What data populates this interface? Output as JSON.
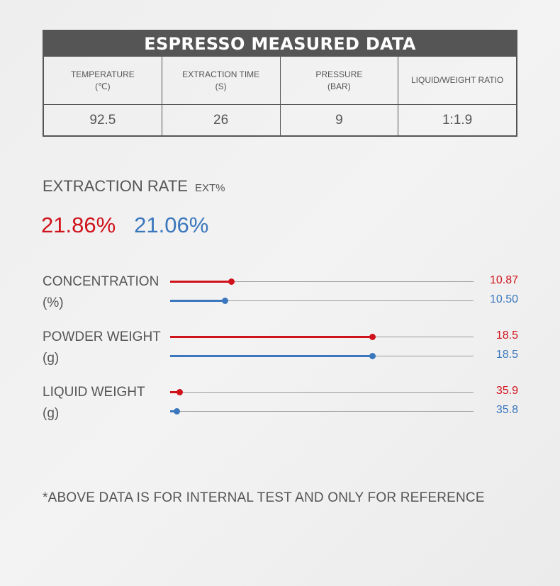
{
  "table": {
    "title": "ESPRESSO MEASURED DATA",
    "headers": [
      "TEMPERATURE\n(℃)",
      "EXTRACTION TIME\n(S)",
      "PRESSURE\n(BAR)",
      "LIQUID/WEIGHT RATIO"
    ],
    "values": [
      "92.5",
      "26",
      "9",
      "1:1.9"
    ]
  },
  "extraction": {
    "title": "EXTRACTION RATE",
    "unit": "EXT%",
    "value_red": "21.86%",
    "value_blue": "21.06%"
  },
  "colors": {
    "red": "#d0121b",
    "blue": "#3a77bd",
    "header_bg": "#555555"
  },
  "chart_data": {
    "type": "bar",
    "orientation": "horizontal",
    "groups": [
      {
        "label": "CONCENTRATION",
        "unit": "(%)",
        "red": {
          "label": "10.87",
          "fraction": 0.2
        },
        "blue": {
          "label": "10.50",
          "fraction": 0.18
        }
      },
      {
        "label": "POWDER WEIGHT",
        "unit": "(g)",
        "red": {
          "label": "18.5",
          "fraction": 0.667
        },
        "blue": {
          "label": "18.5",
          "fraction": 0.667
        }
      },
      {
        "label": "LIQUID WEIGHT",
        "unit": "(g)",
        "red": {
          "label": "35.9",
          "fraction": 0.03
        },
        "blue": {
          "label": "35.8",
          "fraction": 0.022
        }
      }
    ]
  },
  "footnote": "*ABOVE DATA IS FOR INTERNAL TEST AND ONLY FOR REFERENCE"
}
